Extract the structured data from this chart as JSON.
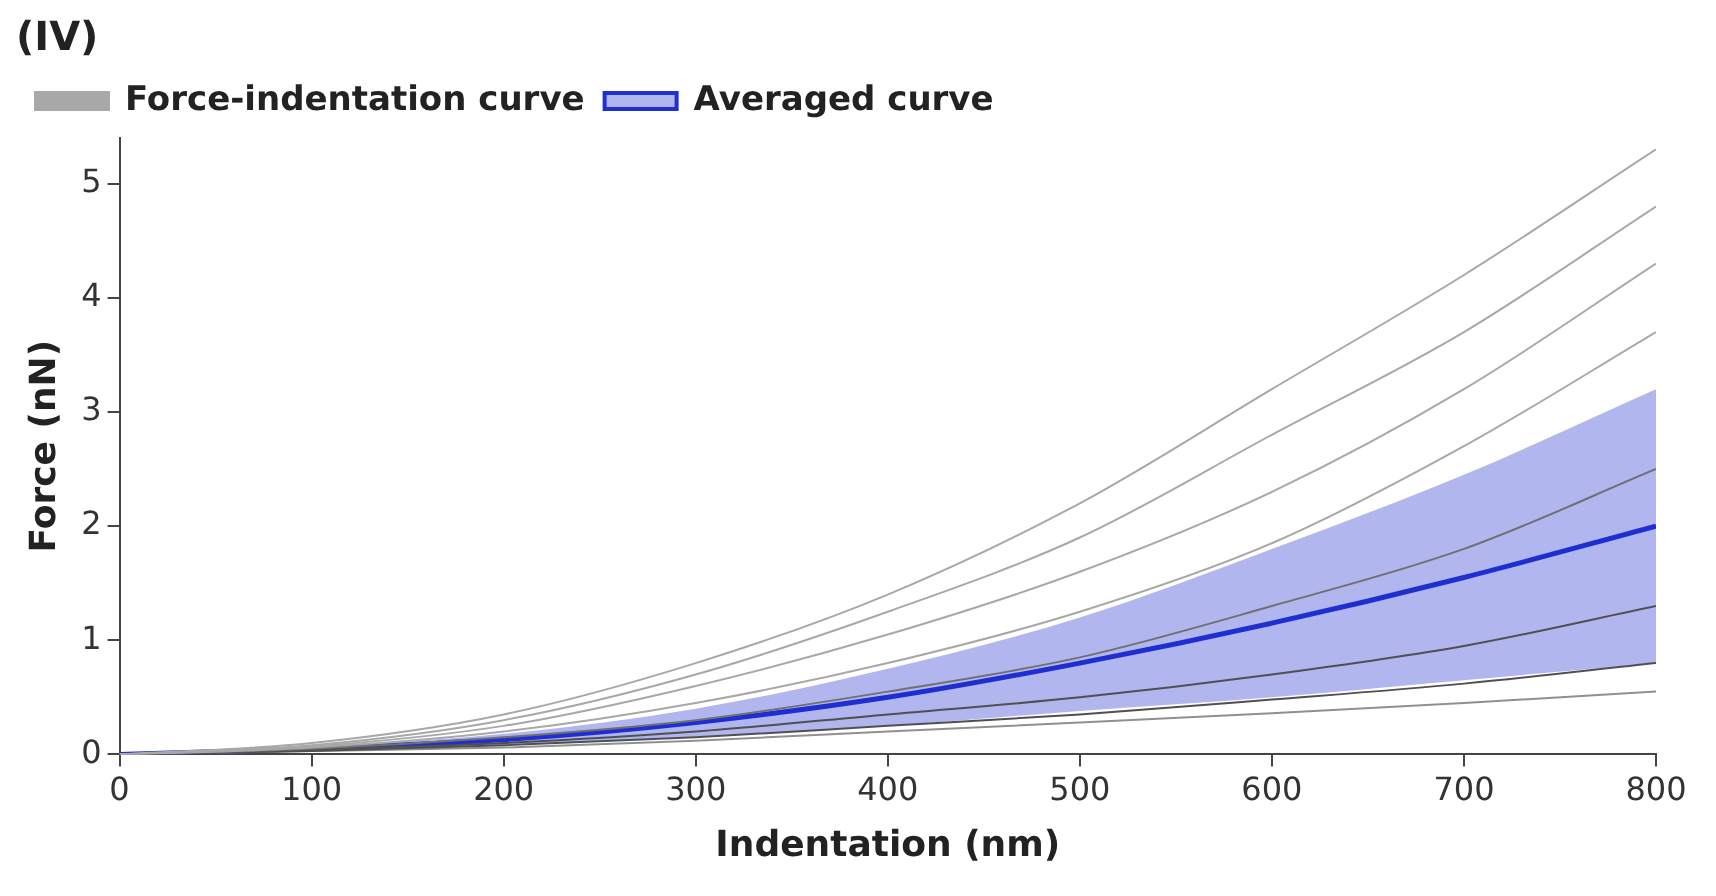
{
  "chart_data": {
    "type": "line",
    "title": "(IV)",
    "xlabel": "Indentation (nm)",
    "ylabel": "Force (nN)",
    "x": [
      0,
      100,
      200,
      300,
      400,
      500,
      600,
      700,
      800
    ],
    "series": [
      {
        "name": "Force-indentation curve",
        "color": "#a8a8a8",
        "values": [
          0,
          0.1,
          0.35,
          0.8,
          1.4,
          2.2,
          3.2,
          4.2,
          5.3
        ]
      },
      {
        "color": "#a8a8a8",
        "values": [
          0,
          0.08,
          0.3,
          0.7,
          1.25,
          1.9,
          2.8,
          3.7,
          4.8
        ]
      },
      {
        "color": "#a8a8a8",
        "values": [
          0,
          0.07,
          0.25,
          0.6,
          1.05,
          1.6,
          2.3,
          3.2,
          4.3
        ]
      },
      {
        "color": "#a8a8a8",
        "values": [
          0,
          0.06,
          0.2,
          0.45,
          0.8,
          1.25,
          1.85,
          2.7,
          3.7
        ]
      },
      {
        "color": "#707070",
        "values": [
          0,
          0.05,
          0.15,
          0.3,
          0.55,
          0.85,
          1.3,
          1.8,
          2.5
        ]
      },
      {
        "color": "#505050",
        "values": [
          0,
          0.04,
          0.1,
          0.2,
          0.35,
          0.5,
          0.7,
          0.95,
          1.3
        ]
      },
      {
        "color": "#505050",
        "values": [
          0,
          0.03,
          0.08,
          0.15,
          0.25,
          0.35,
          0.48,
          0.62,
          0.8
        ]
      },
      {
        "color": "#909090",
        "values": [
          0,
          0.03,
          0.06,
          0.12,
          0.2,
          0.28,
          0.36,
          0.45,
          0.55
        ]
      },
      {
        "name": "Averaged curve",
        "color": "#1f2fd0",
        "values": [
          0,
          0.05,
          0.13,
          0.28,
          0.5,
          0.8,
          1.15,
          1.55,
          2.0
        ],
        "lower": [
          0,
          0.03,
          0.08,
          0.15,
          0.25,
          0.38,
          0.5,
          0.65,
          0.8
        ],
        "upper": [
          0,
          0.07,
          0.18,
          0.4,
          0.75,
          1.2,
          1.8,
          2.45,
          3.2
        ]
      }
    ],
    "xlim": [
      0,
      800
    ],
    "xticks": [
      0,
      100,
      200,
      300,
      400,
      500,
      600,
      700,
      800
    ],
    "ylim": [
      0,
      5.4
    ],
    "yticks": [
      0,
      1,
      2,
      3,
      4,
      5
    ],
    "grid": false,
    "legend": "top left",
    "marker": "none",
    "line_style": "solid"
  }
}
